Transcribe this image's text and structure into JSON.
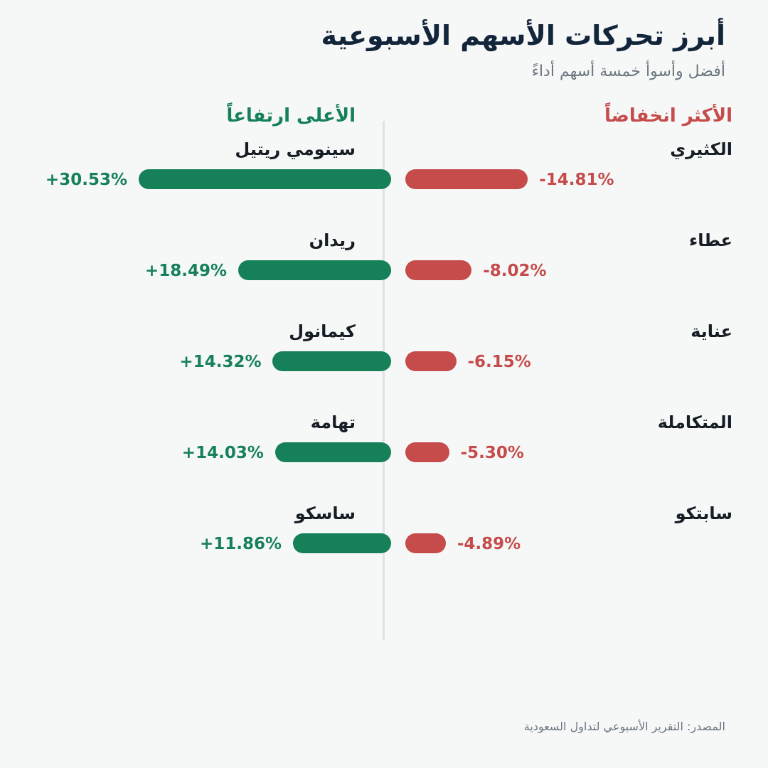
{
  "title": "أبرز تحركات الأسهم الأسبوعية",
  "subtitle": "أفضل وأسوأ خمسة أسهم أداءً",
  "source": "المصدر: التقرير الأسبوعي لتداول السعودية",
  "colors": {
    "gainer": "#168059",
    "loser": "#c64b4b",
    "background": "#f6f8f8"
  },
  "chart_data": [
    {
      "type": "bar",
      "orientation": "horizontal",
      "title": "الأكثر انخفاضاً",
      "categories": [
        "الكثيري",
        "عطاء",
        "عناية",
        "المتكاملة",
        "سابتكو"
      ],
      "values": [
        -14.81,
        -8.02,
        -6.15,
        -5.3,
        -4.89
      ],
      "labels": [
        "-14.81%",
        "-8.02%",
        "-6.15%",
        "-5.30%",
        "-4.89%"
      ]
    },
    {
      "type": "bar",
      "orientation": "horizontal",
      "title": "الأعلى ارتفاعاً",
      "categories": [
        "سينومي ريتيل",
        "ريدان",
        "كيمانول",
        "تهامة",
        "ساسكو"
      ],
      "values": [
        30.53,
        18.49,
        14.32,
        14.03,
        11.86
      ],
      "labels": [
        "+30.53%",
        "+18.49%",
        "+14.32%",
        "+14.03%",
        "+11.86%"
      ]
    }
  ]
}
